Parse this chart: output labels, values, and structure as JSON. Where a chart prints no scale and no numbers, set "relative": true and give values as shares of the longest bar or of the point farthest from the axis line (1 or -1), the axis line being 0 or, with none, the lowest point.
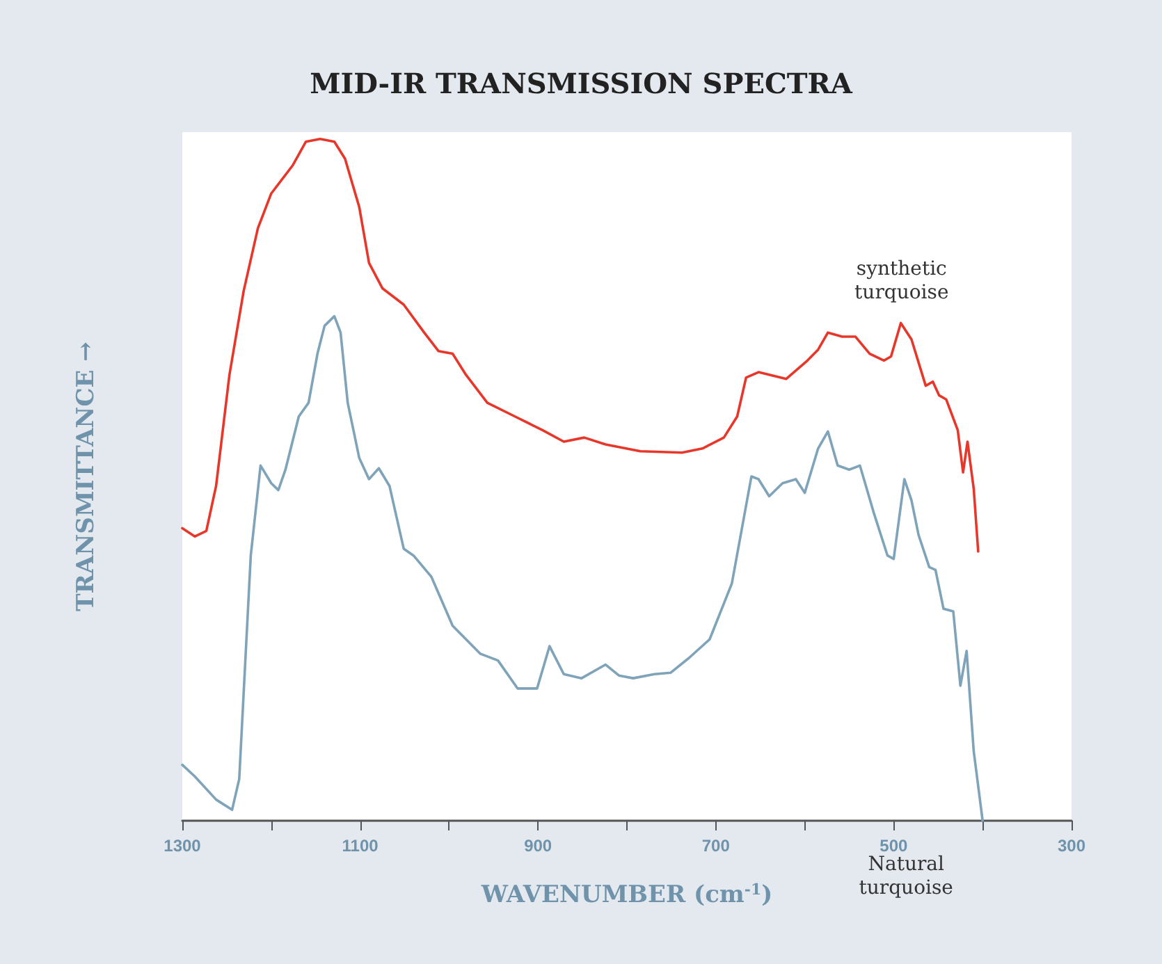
{
  "chart_data": {
    "type": "line",
    "title": "MID-IR TRANSMISSION SPECTRA",
    "xlabel": "WAVENUMBER (cm$^{-1}$)",
    "ylabel": "TRANSMITTANCE →",
    "relative": true,
    "xlim": [
      1300,
      300
    ],
    "xticks": [
      1300,
      {
        "value": 1200,
        "label": null
      },
      1100,
      {
        "value": 1000,
        "label": null
      },
      900,
      {
        "value": 800,
        "label": null
      },
      700,
      {
        "value": 600,
        "label": null
      },
      500,
      {
        "value": 400,
        "label": null
      },
      300
    ],
    "grid": false,
    "legend": false,
    "marker": "none",
    "line_style": "solid",
    "series": [
      {
        "name": "synthetic turquoise",
        "color": "#e8372a",
        "x": [
          1300,
          1286,
          1273,
          1262,
          1247,
          1231,
          1215,
          1200,
          1176,
          1161,
          1145,
          1129,
          1117,
          1101,
          1090,
          1075,
          1051,
          1028,
          1012,
          996,
          981,
          957,
          926,
          895,
          871,
          848,
          824,
          785,
          738,
          715,
          691,
          676,
          666,
          652,
          621,
          597,
          585,
          574,
          558,
          543,
          527,
          511,
          503,
          492,
          480,
          464,
          456,
          449,
          441,
          428,
          422,
          417,
          410,
          405
        ],
        "values": [
          0.429,
          0.417,
          0.425,
          0.491,
          0.654,
          0.777,
          0.869,
          0.92,
          0.961,
          0.996,
          1,
          0.996,
          0.971,
          0.9,
          0.818,
          0.781,
          0.757,
          0.716,
          0.689,
          0.685,
          0.654,
          0.613,
          0.593,
          0.573,
          0.556,
          0.562,
          0.552,
          0.542,
          0.54,
          0.546,
          0.562,
          0.593,
          0.65,
          0.658,
          0.648,
          0.675,
          0.691,
          0.716,
          0.71,
          0.71,
          0.685,
          0.675,
          0.681,
          0.73,
          0.706,
          0.638,
          0.644,
          0.624,
          0.618,
          0.573,
          0.511,
          0.556,
          0.487,
          0.395
        ]
      },
      {
        "name": "Natural turquoise",
        "color": "#7fa3b8",
        "x": [
          1300,
          1286,
          1262,
          1244,
          1236,
          1223,
          1212,
          1200,
          1192,
          1184,
          1169,
          1158,
          1148,
          1140,
          1129,
          1122,
          1114,
          1101,
          1090,
          1079,
          1067,
          1051,
          1040,
          1020,
          996,
          965,
          945,
          923,
          901,
          887,
          871,
          851,
          824,
          809,
          793,
          769,
          751,
          730,
          707,
          682,
          660,
          652,
          640,
          625,
          610,
          600,
          585,
          574,
          563,
          550,
          538,
          522,
          507,
          500,
          488,
          480,
          472,
          460,
          453,
          444,
          433,
          425,
          418,
          410,
          400
        ],
        "values": [
          0.082,
          0.065,
          0.031,
          0.016,
          0.061,
          0.389,
          0.521,
          0.495,
          0.485,
          0.515,
          0.593,
          0.613,
          0.685,
          0.726,
          0.74,
          0.716,
          0.613,
          0.532,
          0.501,
          0.517,
          0.491,
          0.399,
          0.389,
          0.358,
          0.286,
          0.245,
          0.235,
          0.194,
          0.194,
          0.256,
          0.215,
          0.209,
          0.229,
          0.213,
          0.209,
          0.215,
          0.217,
          0.239,
          0.266,
          0.348,
          0.505,
          0.501,
          0.476,
          0.495,
          0.501,
          0.481,
          0.546,
          0.571,
          0.521,
          0.515,
          0.521,
          0.45,
          0.389,
          0.384,
          0.501,
          0.47,
          0.419,
          0.372,
          0.368,
          0.311,
          0.307,
          0.198,
          0.249,
          0.102,
          0
        ]
      }
    ]
  }
}
